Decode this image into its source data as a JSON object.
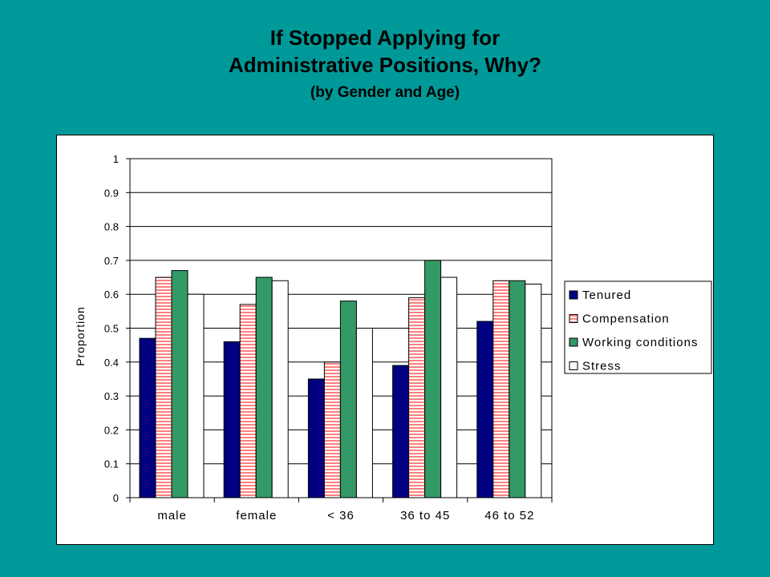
{
  "title": {
    "line1": "If Stopped Applying for",
    "line2": "Administrative Positions, Why?",
    "subtitle": "(by Gender and Age)"
  },
  "chart_data": {
    "type": "bar",
    "categories": [
      "male",
      "female",
      "< 36",
      "36 to 45",
      "46 to 52"
    ],
    "series": [
      {
        "name": "Tenured",
        "values": [
          0.47,
          0.46,
          0.35,
          0.39,
          0.52
        ],
        "color": "#000080",
        "pattern": "solid"
      },
      {
        "name": "Compensation",
        "values": [
          0.65,
          0.57,
          0.4,
          0.59,
          0.64
        ],
        "color": "#ff8080",
        "pattern": "horizontal-stripes"
      },
      {
        "name": "Working conditions",
        "values": [
          0.67,
          0.65,
          0.58,
          0.7,
          0.64
        ],
        "color": "#339966",
        "pattern": "solid"
      },
      {
        "name": "Stress",
        "values": [
          0.6,
          0.64,
          0.5,
          0.65,
          0.63
        ],
        "color": "#ffffff",
        "pattern": "solid"
      }
    ],
    "ylabel": "Proportion",
    "xlabel": "",
    "ylim": [
      0,
      1
    ],
    "yticks": [
      "0",
      "0.1",
      "0.2",
      "0.3",
      "0.4",
      "0.5",
      "0.6",
      "0.7",
      "0.8",
      "0.9",
      "1"
    ],
    "grid": true,
    "legend_position": "right"
  }
}
